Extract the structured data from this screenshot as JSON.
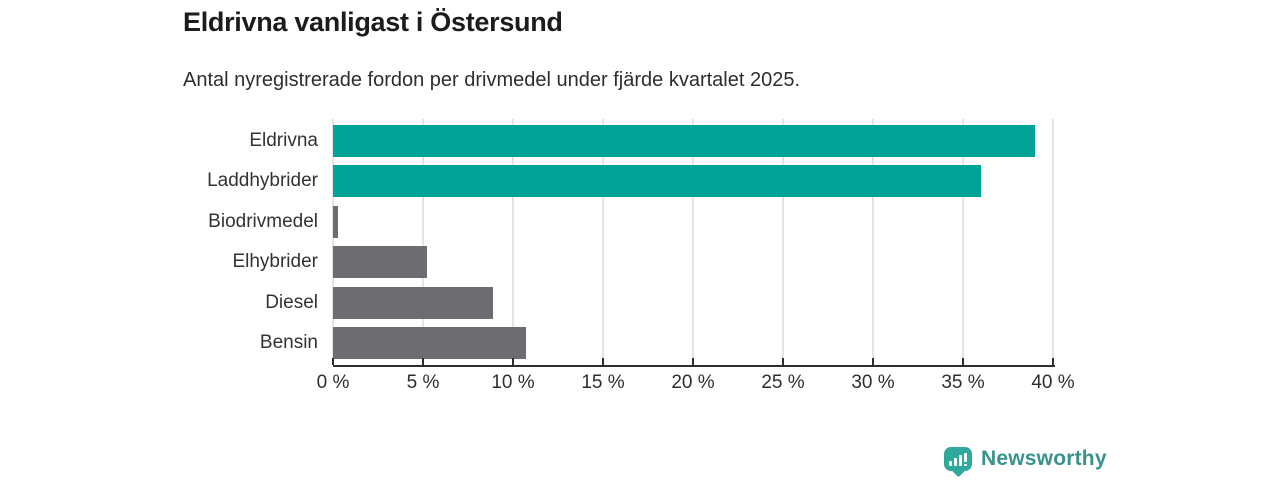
{
  "header": {
    "title": "Eldrivna vanligast i Östersund",
    "subtitle": "Antal nyregistrerade fordon per drivmedel under fjärde kvartalet 2025."
  },
  "chart_data": {
    "type": "bar",
    "orientation": "horizontal",
    "title": "Eldrivna vanligast i Östersund",
    "subtitle": "Antal nyregistrerade fordon per drivmedel under fjärde kvartalet 2025.",
    "categories": [
      "Eldrivna",
      "Laddhybrider",
      "Biodrivmedel",
      "Elhybrider",
      "Diesel",
      "Bensin"
    ],
    "values": [
      39,
      36,
      0.3,
      5.2,
      8.9,
      10.7
    ],
    "unit": "%",
    "bar_colors": [
      "#00a396",
      "#00a396",
      "#6c6c71",
      "#6c6c71",
      "#6c6c71",
      "#6c6c71"
    ],
    "xlabel": "",
    "ylabel": "",
    "xlim": [
      0,
      40
    ],
    "x_ticks": [
      0,
      5,
      10,
      15,
      20,
      25,
      30,
      35,
      40
    ],
    "x_tick_labels": [
      "0 %",
      "5 %",
      "10 %",
      "15 %",
      "20 %",
      "25 %",
      "30 %",
      "35 %",
      "40 %"
    ],
    "grid": "vertical",
    "legend": "none"
  },
  "colors": {
    "accent_teal": "#00a396",
    "bar_gray": "#6c6c71",
    "gridline": "#e4e4e4",
    "axis": "#2e2e2e",
    "logo_badge": "#30a89c",
    "logo_text": "#3a928c"
  },
  "footer": {
    "brand": "Newsworthy"
  }
}
